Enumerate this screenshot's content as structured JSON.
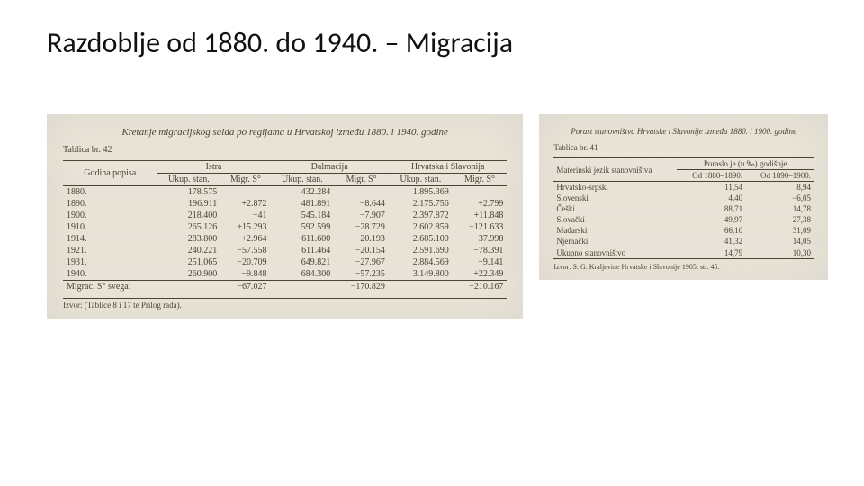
{
  "title": "Razdoblje od 1880. do 1940. – Migracija",
  "colors": {
    "page_bg": "#ffffff",
    "scan_bg": "#ece7db",
    "scan_text": "#4a4435",
    "title_color": "#111111"
  },
  "tableA": {
    "caption": "Kretanje migracijskog salda po regijama u Hrvatskoj između 1880. i 1940. godine",
    "label": "Tablica br. 42",
    "col_year": "Godina popisa",
    "groups": [
      "Istra",
      "Dalmacija",
      "Hrvatska i Slavonija"
    ],
    "subcols": [
      "Ukup. stan.",
      "Migr. S°"
    ],
    "rows": [
      {
        "year": "1880.",
        "ip": "178.575",
        "is": "",
        "dp": "432.284",
        "ds": "",
        "hp": "1.895.369",
        "hs": ""
      },
      {
        "year": "1890.",
        "ip": "196.911",
        "is": "+2.872",
        "dp": "481.891",
        "ds": "−8.644",
        "hp": "2.175.756",
        "hs": "+2.799"
      },
      {
        "year": "1900.",
        "ip": "218.400",
        "is": "−41",
        "dp": "545.184",
        "ds": "−7.907",
        "hp": "2.397.872",
        "hs": "+11.848"
      },
      {
        "year": "1910.",
        "ip": "265.126",
        "is": "+15.293",
        "dp": "592.599",
        "ds": "−28.729",
        "hp": "2.602.859",
        "hs": "−121.633"
      },
      {
        "year": "1914.",
        "ip": "283.800",
        "is": "+2.964",
        "dp": "611.600",
        "ds": "−20.193",
        "hp": "2.685.100",
        "hs": "−37.998"
      },
      {
        "year": "1921.",
        "ip": "240.221",
        "is": "−57.558",
        "dp": "611.464",
        "ds": "−20.154",
        "hp": "2.591.690",
        "hs": "−78.391"
      },
      {
        "year": "1931.",
        "ip": "251.065",
        "is": "−20.709",
        "dp": "649.821",
        "ds": "−27.967",
        "hp": "2.884.569",
        "hs": "−9.141"
      },
      {
        "year": "1940.",
        "ip": "260.900",
        "is": "−9.848",
        "dp": "684.300",
        "ds": "−57.235",
        "hp": "3.149.800",
        "hs": "+22.349"
      }
    ],
    "total_label": "Migrac. S° svega:",
    "totals": {
      "istra": "−67.027",
      "dalm": "−170.829",
      "hrv": "−210.167"
    },
    "source": "Izvor: (Tablice 8 i 17 te Prilog rada)."
  },
  "tableB": {
    "caption": "Porast stanovništva Hrvatske i Slavonije između 1880. i 1900. godine",
    "label": "Tablica br. 41",
    "col_lang": "Materinski jezik stanovništva",
    "col_head": "Poraslo je (u ‰) godišnje",
    "col_p1": "Od 1880–1890.",
    "col_p2": "Od 1890–1900.",
    "rows": [
      {
        "l": "Hrvatsko-srpski",
        "a": "11,54",
        "b": "8,94"
      },
      {
        "l": "Slovenski",
        "a": "4,40",
        "b": "−6,05"
      },
      {
        "l": "Češki",
        "a": "88,71",
        "b": "14,78"
      },
      {
        "l": "Slovački",
        "a": "49,97",
        "b": "27,38"
      },
      {
        "l": "Mađarski",
        "a": "66,10",
        "b": "31,09"
      },
      {
        "l": "Njemački",
        "a": "41,32",
        "b": "14,05"
      }
    ],
    "total_label": "Ukupno stanovništvo",
    "totals": {
      "a": "14,79",
      "b": "10,30"
    },
    "source": "Izvor: S. G. Kraljevine Hrvatske i Slavonije 1905, str. 45."
  }
}
